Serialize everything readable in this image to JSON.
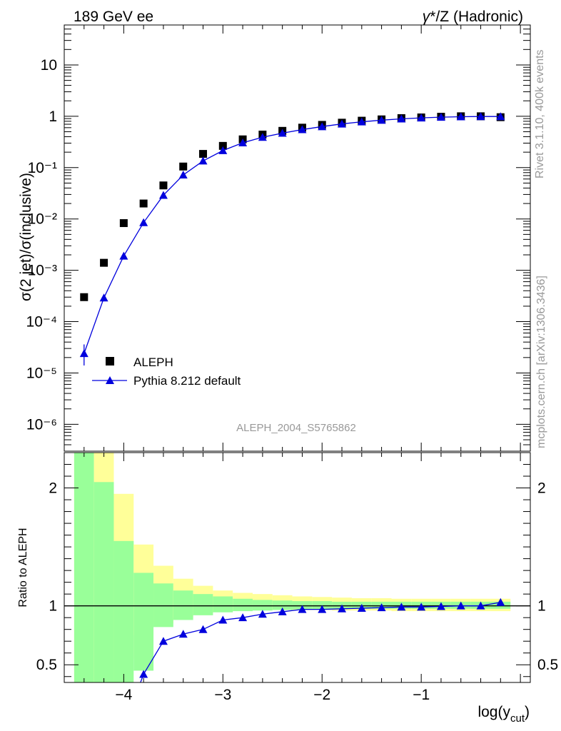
{
  "header": {
    "left": "189 GeV ee",
    "right_greek": "γ",
    "right_text": "*/Z (Hadronic)"
  },
  "side_text": {
    "rivet": "Rivet 3.1.10,  400k events",
    "mcplots": "mcplots.cern.ch [arXiv:1306.3436]"
  },
  "analysis_id": "ALEPH_2004_S5765862",
  "colors": {
    "mc": "#0000dd",
    "band_green": "#99ff99",
    "band_yellow": "#ffff99",
    "data": "#000000",
    "side_text": "#999999"
  },
  "chart_data": [
    {
      "type": "scatter",
      "panel": "main",
      "ylabel": "σ(2 jet)/σ(inclusive)",
      "yscale": "log",
      "xlim": [
        -4.6,
        0.1
      ],
      "ylim": [
        3e-07,
        60
      ],
      "y_tick_labels": [
        "10",
        "1",
        "10⁻¹",
        "10⁻²",
        "10⁻³",
        "10⁻⁴",
        "10⁻⁵",
        "10⁻⁶"
      ],
      "legend_position": "lower-left",
      "series": [
        {
          "name": "ALEPH",
          "marker": "square",
          "x": [
            -4.4,
            -4.2,
            -4.0,
            -3.8,
            -3.6,
            -3.4,
            -3.2,
            -3.0,
            -2.8,
            -2.6,
            -2.4,
            -2.2,
            -2.0,
            -1.8,
            -1.6,
            -1.4,
            -1.2,
            -1.0,
            -0.8,
            -0.6,
            -0.4,
            -0.2
          ],
          "y": [
            0.0003,
            0.0014,
            0.0083,
            0.02,
            0.045,
            0.105,
            0.185,
            0.265,
            0.355,
            0.44,
            0.52,
            0.6,
            0.68,
            0.75,
            0.82,
            0.87,
            0.92,
            0.95,
            0.98,
            1.0,
            1.0,
            0.96
          ]
        },
        {
          "name": "Pythia 8.212 default",
          "marker": "triangle",
          "x": [
            -4.4,
            -4.2,
            -4.0,
            -3.8,
            -3.6,
            -3.4,
            -3.2,
            -3.0,
            -2.8,
            -2.6,
            -2.4,
            -2.2,
            -2.0,
            -1.8,
            -1.6,
            -1.4,
            -1.2,
            -1.0,
            -0.8,
            -0.6,
            -0.4,
            -0.2
          ],
          "y": [
            2.4e-05,
            0.00029,
            0.0019,
            0.0085,
            0.029,
            0.072,
            0.135,
            0.215,
            0.305,
            0.39,
            0.47,
            0.55,
            0.63,
            0.71,
            0.78,
            0.84,
            0.89,
            0.93,
            0.96,
            0.98,
            0.99,
            0.99
          ],
          "y_err_low": [
            1e-05,
            0,
            0,
            0,
            0,
            0,
            0,
            0,
            0,
            0,
            0,
            0,
            0,
            0,
            0,
            0,
            0,
            0,
            0,
            0,
            0,
            0
          ],
          "y_err_high": [
            1.2e-05,
            0,
            0,
            0,
            0,
            0,
            0,
            0,
            0,
            0,
            0,
            0,
            0,
            0,
            0,
            0,
            0,
            0,
            0,
            0,
            0,
            0
          ]
        }
      ]
    },
    {
      "type": "line",
      "panel": "ratio",
      "ylabel": "Ratio to ALEPH",
      "xlabel": "log(y",
      "xlabel_sub": "cut",
      "xlabel_close": ")",
      "xlim": [
        -4.6,
        0.1
      ],
      "ylim": [
        0.35,
        2.3
      ],
      "x_ticks": [
        -4,
        -3,
        -2,
        -1
      ],
      "x_tick_labels": [
        "−4",
        "−3",
        "−2",
        "−1"
      ],
      "y_ticks": [
        0.5,
        1,
        2
      ],
      "y_tick_labels": [
        "0.5",
        "1",
        "2"
      ],
      "reference_line": 1,
      "bands": {
        "bin_edges": [
          -4.5,
          -4.3,
          -4.1,
          -3.9,
          -3.7,
          -3.5,
          -3.3,
          -3.1,
          -2.9,
          -2.7,
          -2.5,
          -2.3,
          -2.1,
          -1.9,
          -1.7,
          -1.5,
          -1.3,
          -1.1,
          -0.9,
          -0.7,
          -0.5,
          -0.3,
          -0.1
        ],
        "yellow_low": [
          0.0,
          0.0,
          0.55,
          0.75,
          0.85,
          0.9,
          0.93,
          0.95,
          0.96,
          0.965,
          0.965,
          0.965,
          0.965,
          0.96,
          0.96,
          0.96,
          0.955,
          0.955,
          0.955,
          0.955,
          0.955,
          0.955
        ],
        "yellow_high": [
          3.0,
          2.3,
          1.95,
          1.52,
          1.34,
          1.23,
          1.17,
          1.13,
          1.11,
          1.1,
          1.09,
          1.08,
          1.075,
          1.07,
          1.065,
          1.065,
          1.06,
          1.06,
          1.06,
          1.06,
          1.06,
          1.06
        ],
        "green_low": [
          0.0,
          0.0,
          0.0,
          0.45,
          0.82,
          0.88,
          0.92,
          0.945,
          0.955,
          0.96,
          0.965,
          0.97,
          0.97,
          0.975,
          0.975,
          0.975,
          0.975,
          0.975,
          0.975,
          0.975,
          0.975,
          0.975
        ],
        "green_high": [
          3.0,
          2.05,
          1.55,
          1.28,
          1.19,
          1.13,
          1.1,
          1.08,
          1.06,
          1.05,
          1.045,
          1.04,
          1.04,
          1.035,
          1.035,
          1.035,
          1.035,
          1.035,
          1.035,
          1.035,
          1.035,
          1.035
        ]
      },
      "series": [
        {
          "name": "Pythia 8.212 default",
          "x": [
            -3.8,
            -3.6,
            -3.4,
            -3.2,
            -3.0,
            -2.8,
            -2.6,
            -2.4,
            -2.2,
            -2.0,
            -1.8,
            -1.6,
            -1.4,
            -1.2,
            -1.0,
            -0.8,
            -0.6,
            -0.4,
            -0.2
          ],
          "y": [
            0.42,
            0.7,
            0.76,
            0.8,
            0.88,
            0.9,
            0.93,
            0.95,
            0.97,
            0.97,
            0.975,
            0.98,
            0.985,
            0.99,
            0.99,
            0.995,
            1.0,
            1.0,
            1.03
          ]
        }
      ]
    }
  ]
}
